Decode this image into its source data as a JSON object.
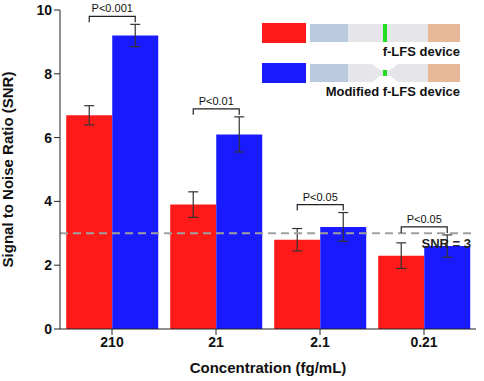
{
  "chart_data": {
    "type": "bar",
    "x_label": "Concentration (fg/mL)",
    "y_label": "Signal to Noise Ratio (SNR)",
    "categories": [
      "210",
      "21",
      "2.1",
      "0.21"
    ],
    "series": [
      {
        "name": "f-LFS device",
        "color": "#ff1a1a",
        "values": [
          6.7,
          3.9,
          2.8,
          2.3
        ],
        "errors": [
          0.3,
          0.4,
          0.35,
          0.4
        ]
      },
      {
        "name": "Modified f-LFS device",
        "color": "#1a1aff",
        "values": [
          9.2,
          6.1,
          3.2,
          2.6
        ],
        "errors": [
          0.35,
          0.55,
          0.45,
          0.35
        ]
      }
    ],
    "ylim": [
      0,
      10
    ],
    "yticks": [
      0,
      2,
      4,
      6,
      8,
      10
    ],
    "annotations": [
      "P<0.001",
      "P<0.01",
      "P<0.05",
      "P<0.05"
    ],
    "reference_line": {
      "value": 3,
      "label": "SNR = 3"
    },
    "legend": "top-right"
  }
}
